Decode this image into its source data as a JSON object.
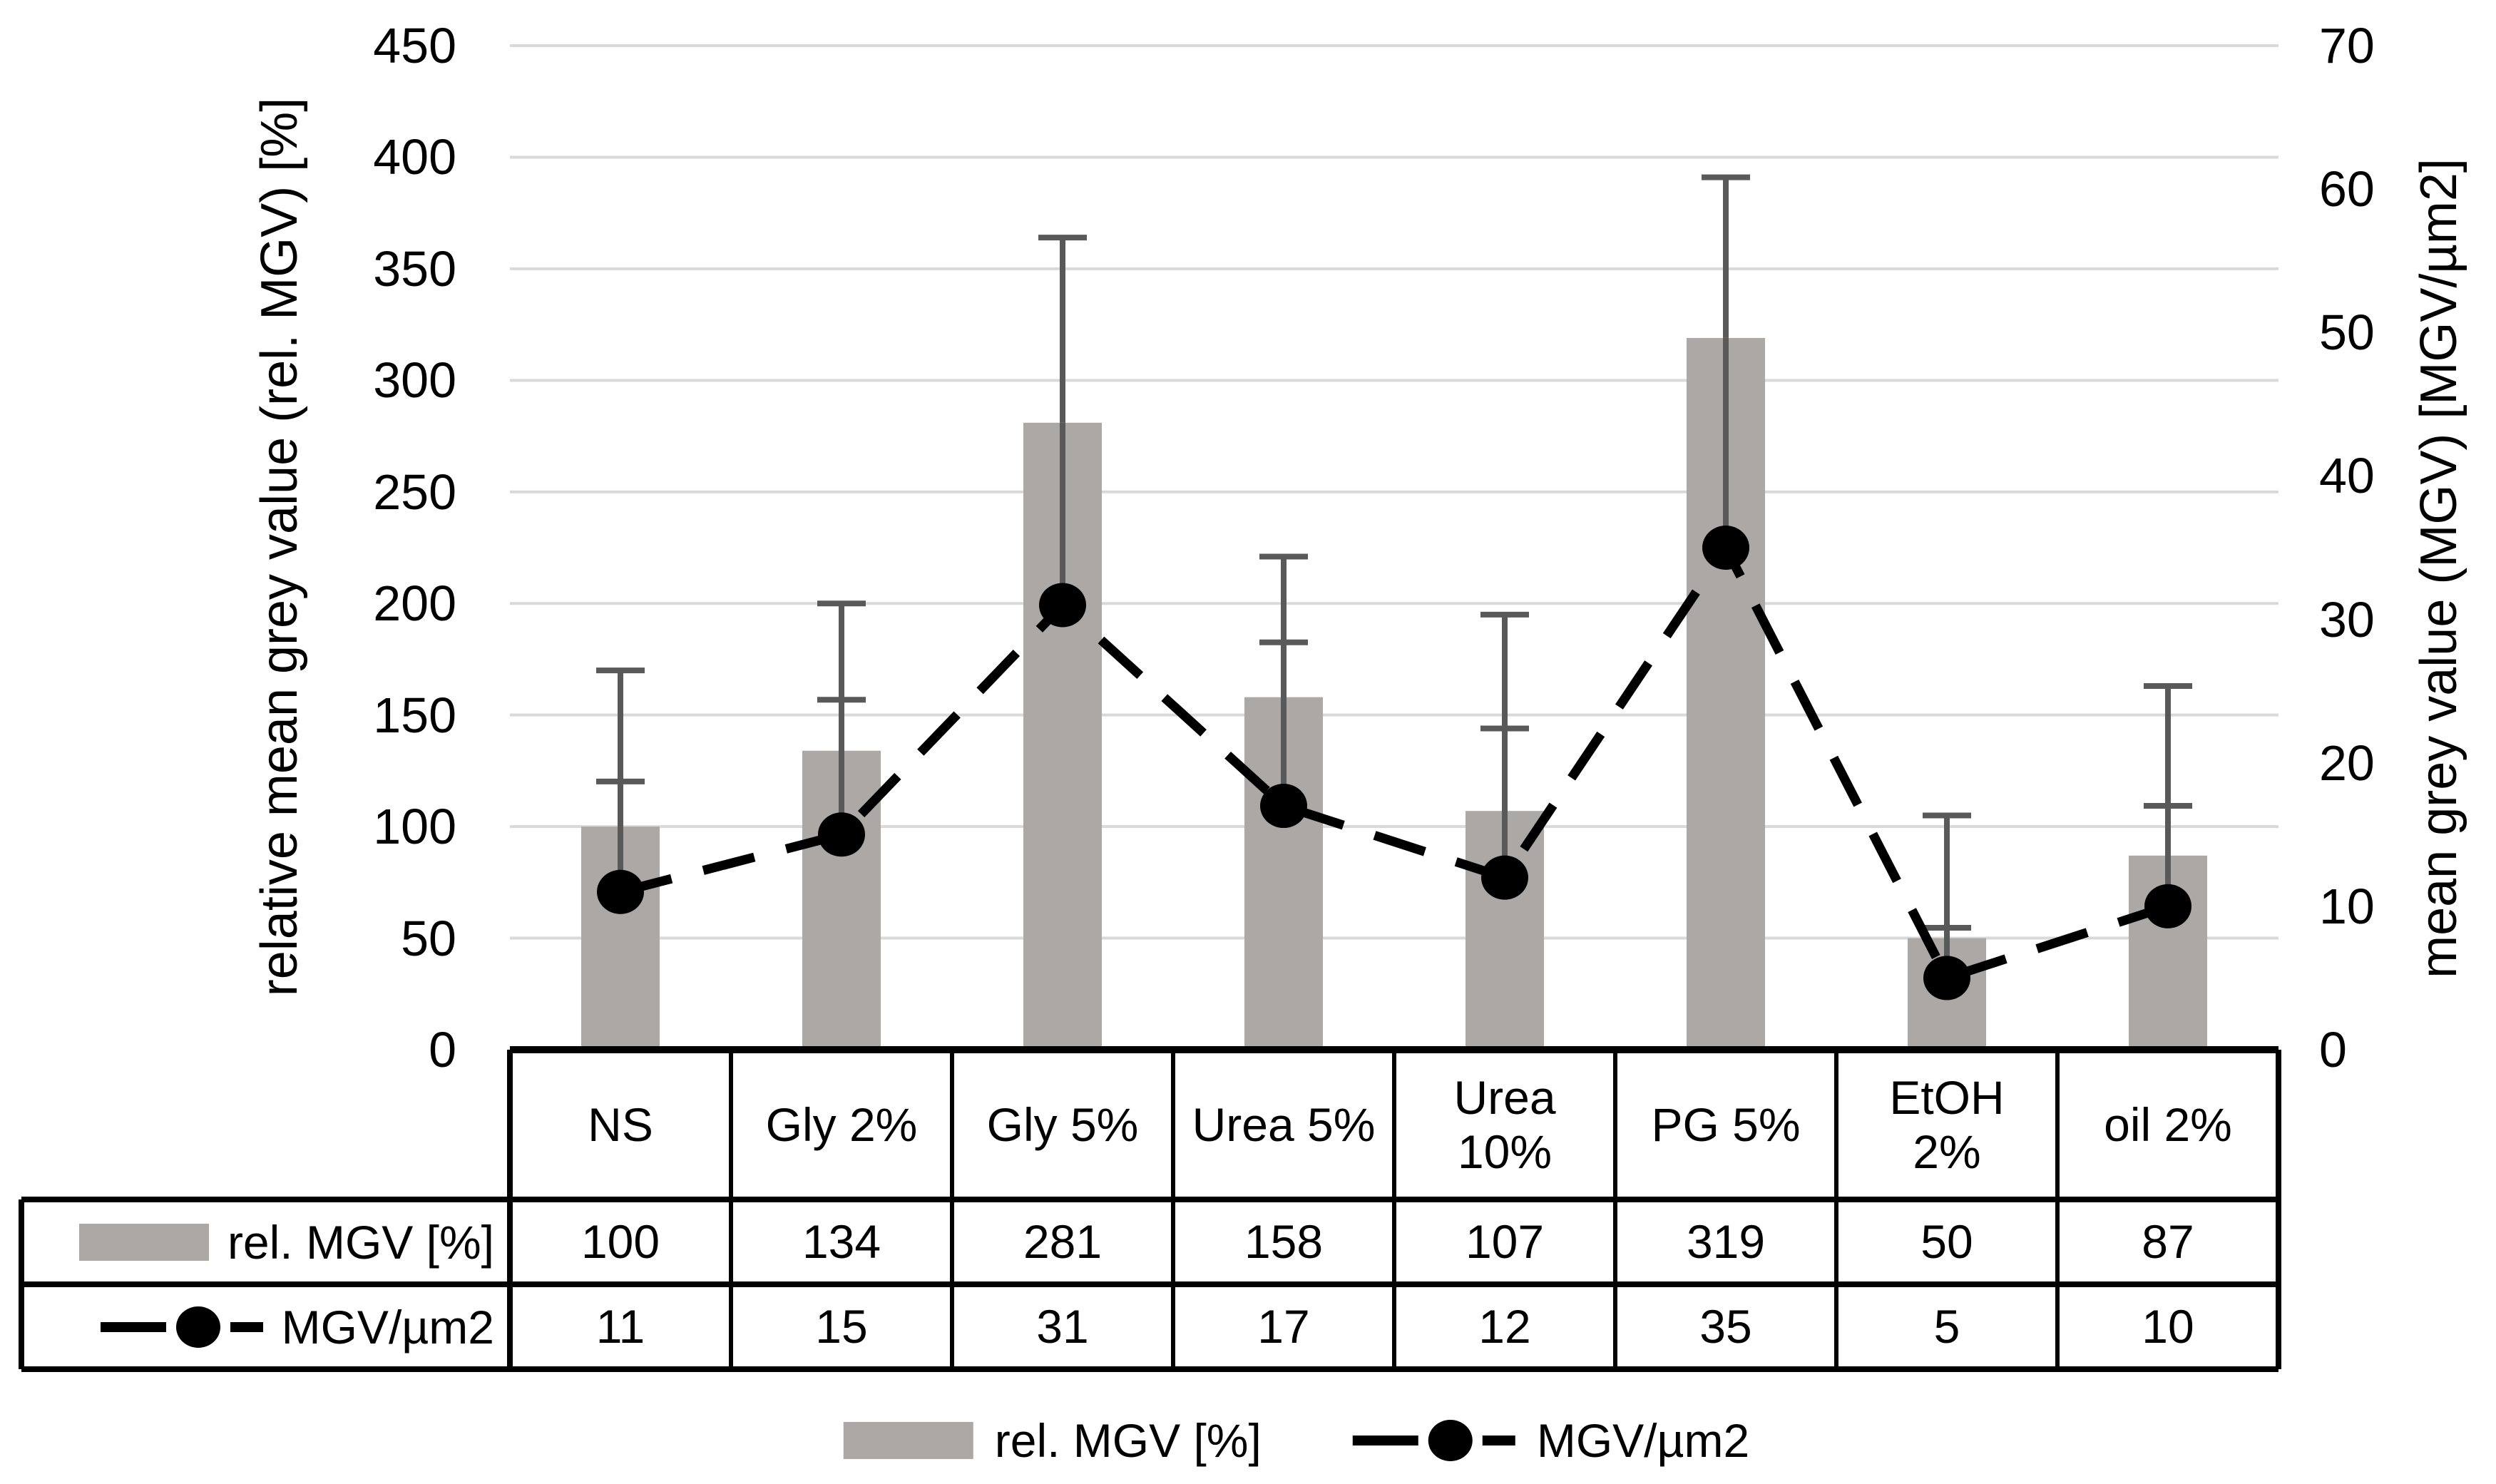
{
  "chart_data": {
    "type": "combo",
    "categories": [
      "NS",
      "Gly 2%",
      "Gly 5%",
      "Urea 5%",
      "Urea 10%",
      "PG 5%",
      "EtOH 2%",
      "oil 2%"
    ],
    "categories_display": [
      "NS",
      "Gly 2%",
      "Gly 5%",
      "Urea 5%",
      "Urea\n10%",
      "PG 5%",
      "EtOH\n2%",
      "oil 2%"
    ],
    "series": [
      {
        "name": "rel. MGV [%]",
        "type": "bar",
        "axis": "left",
        "values": [
          100,
          134,
          281,
          158,
          107,
          319,
          50,
          87
        ],
        "error_plus": [
          70,
          66,
          83,
          63,
          88,
          72,
          55,
          76
        ],
        "color": "#aba8a6"
      },
      {
        "name": "MGV/µm2",
        "type": "line",
        "axis": "right",
        "dashed": true,
        "marker": "circle",
        "values": [
          11,
          15,
          31,
          17,
          12,
          35,
          5,
          10
        ],
        "error_plus": [
          7.7,
          9.4,
          null,
          11.4,
          10.4,
          null,
          3.5,
          7
        ],
        "color": "#000000"
      }
    ],
    "left_axis": {
      "label": "relative mean grey value (rel. MGV) [%]",
      "min": 0,
      "max": 450,
      "step": 50
    },
    "right_axis": {
      "label": "mean grey value (MGV) [MGV/µm2]",
      "min": 0,
      "max": 70,
      "step": 10
    },
    "grid": true,
    "legend_position": "bottom",
    "data_table": {
      "row_labels": [
        "rel. MGV [%]",
        "MGV/µm2"
      ],
      "rows": [
        [
          100,
          134,
          281,
          158,
          107,
          319,
          50,
          87
        ],
        [
          11,
          15,
          31,
          17,
          12,
          35,
          5,
          10
        ]
      ]
    },
    "colors": {
      "error_bar": "#595959",
      "gridline": "#d9d9d9",
      "bar": "#aba8a6",
      "line": "#000000"
    }
  }
}
